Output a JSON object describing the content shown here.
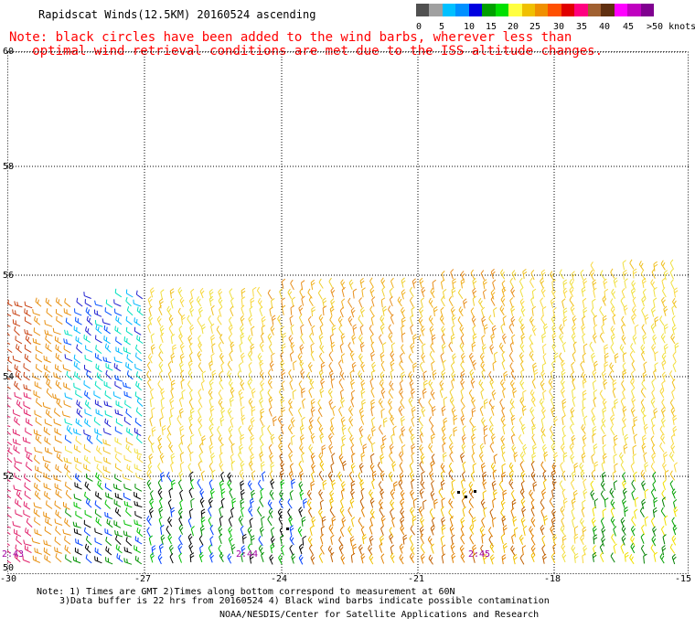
{
  "title": "Rapidscat Winds(12.5KM) 20160524 ascending",
  "note": {
    "line1": "Note: black circles have been added to the wind barbs, wherever less than",
    "line2": "optimal wind retrieval conditions are met due to the ISS altitude changes."
  },
  "legend": {
    "labels": [
      "0",
      "5",
      "10",
      "15",
      "20",
      "25",
      "30",
      "35",
      "40",
      "45",
      ">50 knots"
    ],
    "colors": [
      "#505050",
      "#a0a0a0",
      "#00c0ff",
      "#0090ff",
      "#0000e0",
      "#00a000",
      "#00e000",
      "#ffff40",
      "#f0c000",
      "#f09000",
      "#ff5000",
      "#e00000",
      "#ff0080",
      "#a06030",
      "#603010",
      "#ff00ff",
      "#c000c0",
      "#800090"
    ]
  },
  "map": {
    "lat_labels": [
      "60",
      "58",
      "56",
      "54",
      "52",
      "50"
    ],
    "lon_labels": [
      "-30",
      "-27",
      "-24",
      "-21",
      "-18",
      "-15"
    ],
    "time_labels": [
      "2:43",
      "2:44",
      "2:45"
    ]
  },
  "footer": {
    "line1": "Note: 1) Times are GMT 2)Times along bottom correspond to measurement at 60N",
    "line2": "3)Data buffer is 22 hrs from 20160524 4) Black wind barbs indicate possible contamination",
    "line3": "NOAA/NESDIS/Center for Satellite Applications and Research"
  }
}
